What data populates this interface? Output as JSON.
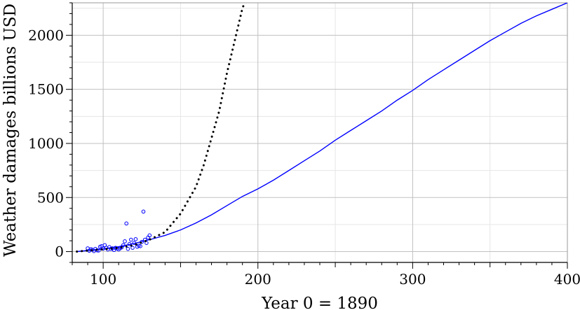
{
  "chart_data": {
    "type": "scatter",
    "title": "",
    "xlabel": "Year 0 = 1890",
    "ylabel": "Weather damages billions USD",
    "xlim": [
      80,
      400
    ],
    "ylim": [
      -100,
      2300
    ],
    "x_ticks": [
      100,
      200,
      300,
      400
    ],
    "y_ticks": [
      0,
      500,
      1000,
      1500,
      2000
    ],
    "grid": true,
    "legend": "none",
    "colors": {
      "observed": "#0000ff",
      "fit": "#0000ff",
      "exponential": "#000000",
      "major_grid": "#c0c0c0",
      "minor_grid": "#e6e6e6"
    },
    "series": [
      {
        "style": "markers-open-circle",
        "x": [
          90,
          91,
          92,
          93,
          94,
          95,
          96,
          97,
          98,
          99,
          100,
          101,
          102,
          103,
          104,
          105,
          106,
          107,
          108,
          109,
          110,
          111,
          112,
          113,
          114,
          115,
          116,
          117,
          118,
          119,
          120,
          121,
          122,
          123,
          124,
          125,
          126,
          127,
          128,
          129,
          130
        ],
        "y": [
          30,
          8,
          22,
          18,
          5,
          25,
          12,
          10,
          45,
          50,
          28,
          60,
          35,
          20,
          42,
          25,
          30,
          15,
          35,
          28,
          20,
          30,
          40,
          60,
          95,
          260,
          25,
          70,
          110,
          35,
          80,
          115,
          45,
          55,
          50,
          90,
          370,
          110,
          80,
          130,
          150
        ]
      },
      {
        "style": "solid-line",
        "x": [
          83,
          90,
          100,
          110,
          120,
          130,
          140,
          150,
          160,
          170,
          180,
          190,
          200,
          210,
          220,
          230,
          240,
          250,
          260,
          270,
          280,
          290,
          300,
          310,
          320,
          330,
          340,
          350,
          360,
          370,
          380,
          390,
          400
        ],
        "y": [
          0,
          10,
          25,
          45,
          75,
          110,
          150,
          200,
          265,
          340,
          425,
          510,
          580,
          660,
          750,
          840,
          930,
          1030,
          1120,
          1210,
          1300,
          1400,
          1490,
          1590,
          1680,
          1770,
          1860,
          1950,
          2030,
          2110,
          2180,
          2240,
          2300
        ]
      },
      {
        "style": "dotted-line",
        "x": [
          83,
          90,
          100,
          110,
          120,
          130,
          140,
          150,
          160,
          165,
          170,
          175,
          180,
          185,
          190,
          192
        ],
        "y": [
          0,
          10,
          20,
          35,
          60,
          110,
          180,
          350,
          600,
          800,
          1050,
          1300,
          1650,
          1950,
          2250,
          2320
        ]
      }
    ]
  }
}
